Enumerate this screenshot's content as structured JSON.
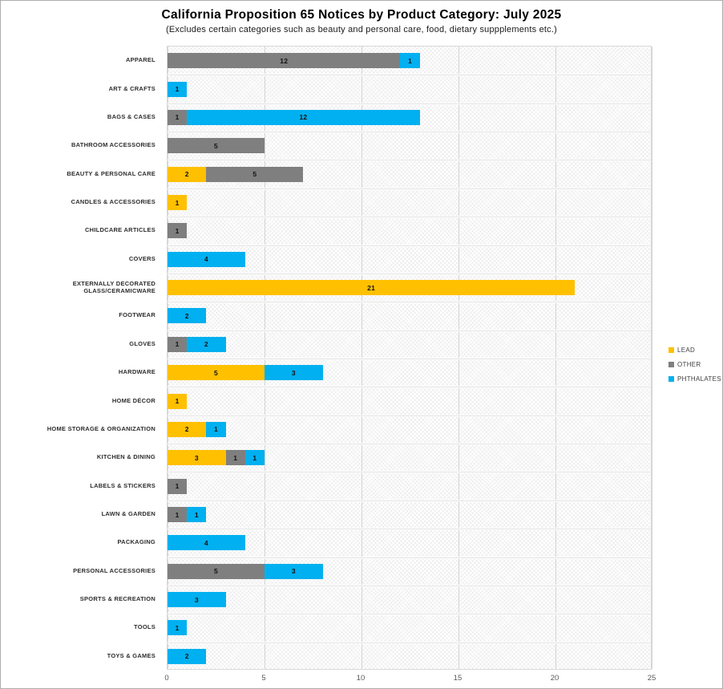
{
  "title": "California Proposition 65 Notices by Product Category: July 2025",
  "subtitle": "(Excludes certain categories such as beauty and personal care, food, dietary suppplements etc.)",
  "chart_data": {
    "type": "bar",
    "orientation": "horizontal",
    "stacked": true,
    "title": "California Proposition 65 Notices by Product Category: July 2025",
    "subtitle": "(Excludes certain categories such as beauty and personal care, food, dietary suppplements etc.)",
    "xlabel": "",
    "ylabel": "",
    "xlim": [
      0,
      25
    ],
    "x_ticks": [
      0,
      5,
      10,
      15,
      20,
      25
    ],
    "grid": "vertical",
    "legend_position": "right",
    "data_labels": true,
    "categories": [
      "APPAREL",
      "ART & CRAFTS",
      "BAGS & CASES",
      "BATHROOM ACCESSORIES",
      "BEAUTY & PERSONAL CARE",
      "CANDLES & ACCESSORIES",
      "CHILDCARE ARTICLES",
      "COVERS",
      "EXTERNALLY DECORATED GLASS/CERAMICWARE",
      "FOOTWEAR",
      "GLOVES",
      "HARDWARE",
      "HOME DÉCOR",
      "HOME STORAGE & ORGANIZATION",
      "KITCHEN & DINING",
      "LABELS & STICKERS",
      "LAWN & GARDEN",
      "PACKAGING",
      "PERSONAL ACCESSORIES",
      "SPORTS & RECREATION",
      "TOOLS",
      "TOYS & GAMES"
    ],
    "series": [
      {
        "name": "LEAD",
        "color": "#FFC000",
        "values": [
          0,
          0,
          0,
          0,
          2,
          1,
          0,
          0,
          21,
          0,
          0,
          5,
          1,
          2,
          3,
          0,
          0,
          0,
          0,
          0,
          0,
          0
        ]
      },
      {
        "name": "OTHER",
        "color": "#7F7F7F",
        "values": [
          12,
          0,
          1,
          5,
          5,
          0,
          1,
          0,
          0,
          0,
          1,
          0,
          0,
          0,
          1,
          1,
          1,
          0,
          5,
          0,
          0,
          0
        ]
      },
      {
        "name": "PHTHALATES",
        "color": "#00B0F0",
        "values": [
          1,
          1,
          12,
          0,
          0,
          0,
          0,
          4,
          0,
          2,
          2,
          3,
          0,
          1,
          1,
          0,
          1,
          4,
          3,
          3,
          1,
          2
        ]
      }
    ]
  }
}
